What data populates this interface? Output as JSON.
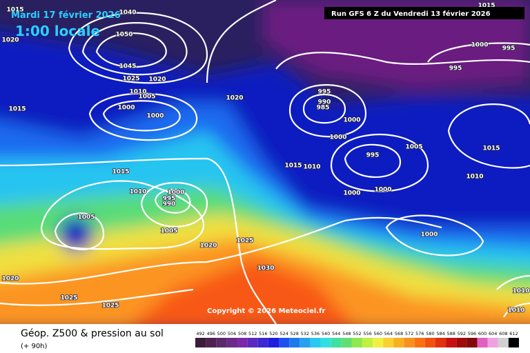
{
  "header": {
    "valid_date": "Mardi 17 février 2026",
    "local_time": "1:00 locale",
    "run": "Run GFS 6 Z du Vendredi 13 février 2026"
  },
  "copyright": "Copyright © 2026 Meteociel.fr",
  "footer": {
    "title": "Géop. Z500 & pression au sol",
    "lead": "(+ 90h)"
  },
  "isobar_labels": [
    1015,
    1040,
    1050,
    1020,
    1045,
    1025,
    1020,
    1010,
    1005,
    1000,
    1000,
    1015,
    1020,
    995,
    990,
    985,
    1000,
    1000,
    995,
    1005,
    1015,
    1010,
    1015,
    1010,
    1000,
    1000,
    1015,
    1010,
    1000,
    995,
    990,
    1005,
    1005,
    1020,
    1025,
    1030,
    1000,
    1020,
    1025,
    1025,
    1000,
    995,
    995,
    1015,
    1010,
    1010
  ],
  "colorbar": {
    "ticks": [
      492,
      496,
      500,
      504,
      508,
      512,
      516,
      520,
      524,
      528,
      532,
      536,
      540,
      544,
      548,
      552,
      556,
      560,
      564,
      568,
      572,
      576,
      580,
      584,
      588,
      592,
      596,
      600,
      604,
      608,
      612
    ],
    "colors": [
      "#3c1a3c",
      "#50204f",
      "#5c2a6a",
      "#6a2a8a",
      "#7a2aa8",
      "#5a2ac0",
      "#3c28d0",
      "#1e1ee0",
      "#1e50f0",
      "#1e78f0",
      "#28a0f0",
      "#28c8f0",
      "#30e0e0",
      "#40e0a0",
      "#60e070",
      "#90e850",
      "#c0f040",
      "#f0f040",
      "#f8d030",
      "#f8b020",
      "#f89020",
      "#f87010",
      "#f05010",
      "#e03010",
      "#c81010",
      "#a00a0a",
      "#800a0a",
      "#e060c0",
      "#f0a0e0",
      "#d0d0d0",
      "#000000"
    ]
  }
}
